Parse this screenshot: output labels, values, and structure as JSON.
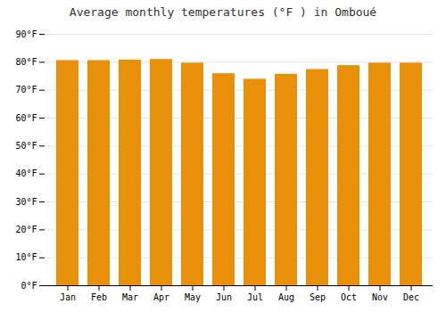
{
  "chart_data": {
    "type": "bar",
    "title": "Average monthly temperatures (°F ) in Omboué",
    "categories": [
      "Jan",
      "Feb",
      "Mar",
      "Apr",
      "May",
      "Jun",
      "Jul",
      "Aug",
      "Sep",
      "Oct",
      "Nov",
      "Dec"
    ],
    "values": [
      80.6,
      80.6,
      80.8,
      81.0,
      79.7,
      75.9,
      73.9,
      75.7,
      77.4,
      78.8,
      79.7,
      79.7
    ],
    "color": "#E8900A",
    "ylim": [
      0,
      90
    ],
    "yticks": [
      {
        "value": 0,
        "label": "0°F"
      },
      {
        "value": 10,
        "label": "10°F"
      },
      {
        "value": 20,
        "label": "20°F"
      },
      {
        "value": 30,
        "label": "30°F"
      },
      {
        "value": 40,
        "label": "40°F"
      },
      {
        "value": 50,
        "label": "50°F"
      },
      {
        "value": 60,
        "label": "60°F"
      },
      {
        "value": 70,
        "label": "70°F"
      },
      {
        "value": 80,
        "label": "80°F"
      },
      {
        "value": 90,
        "label": "90°F"
      }
    ],
    "grid": true
  }
}
